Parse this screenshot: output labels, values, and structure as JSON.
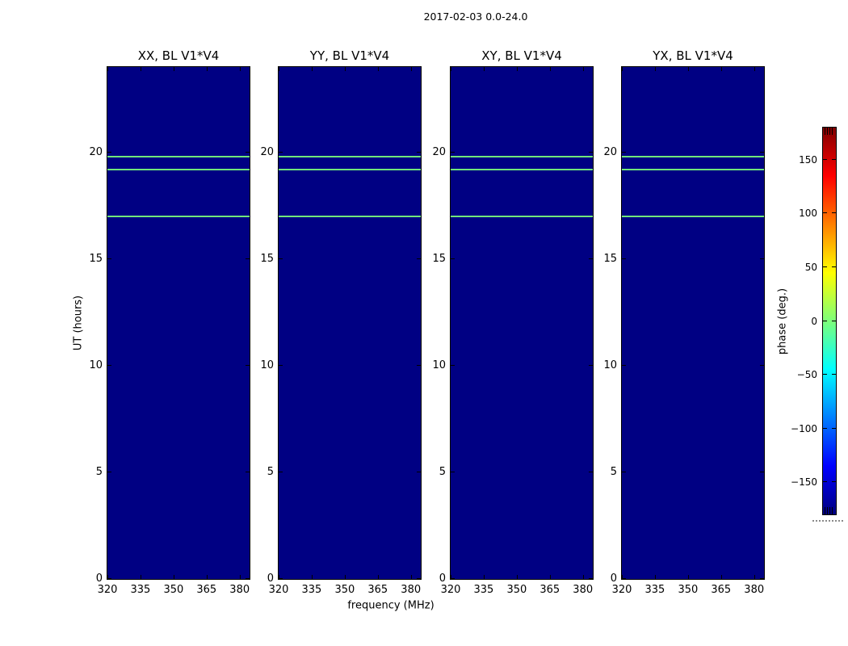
{
  "figure": {
    "title": "2017-02-03 0.0-24.0",
    "background": "#ffffff"
  },
  "chart_data": {
    "type": "heatmap",
    "title": "2017-02-03 0.0-24.0",
    "panels": [
      {
        "title": "XX, BL V1*V4"
      },
      {
        "title": "YY, BL V1*V4"
      },
      {
        "title": "XY, BL V1*V4"
      },
      {
        "title": "YX, BL V1*V4"
      }
    ],
    "xlabel": "frequency (MHz)",
    "ylabel": "UT (hours)",
    "x_ticks": [
      320,
      335,
      350,
      365,
      380
    ],
    "x_range": [
      320,
      384.5
    ],
    "y_ticks": [
      0,
      5,
      10,
      15,
      20
    ],
    "y_range": [
      0,
      24
    ],
    "background_phase_deg": -180,
    "features": [
      {
        "type": "hline",
        "ut_hours": 19.8,
        "phase_deg": 0,
        "color": "#70e57b"
      },
      {
        "type": "hline",
        "ut_hours": 19.2,
        "phase_deg": 0,
        "color": "#70e57b"
      },
      {
        "type": "hline",
        "ut_hours": 17.0,
        "phase_deg": 0,
        "color": "#70e57b"
      }
    ],
    "colorbar": {
      "label": "phase (deg.)",
      "ticks": [
        150,
        100,
        50,
        0,
        -50,
        -100,
        -150
      ],
      "range": [
        -180,
        180
      ],
      "colormap": "jet"
    },
    "colors": {
      "panel_background": "#000083",
      "feature_line": "#70e57b",
      "colormap_low": "#000080",
      "colormap_high": "#800000"
    }
  }
}
